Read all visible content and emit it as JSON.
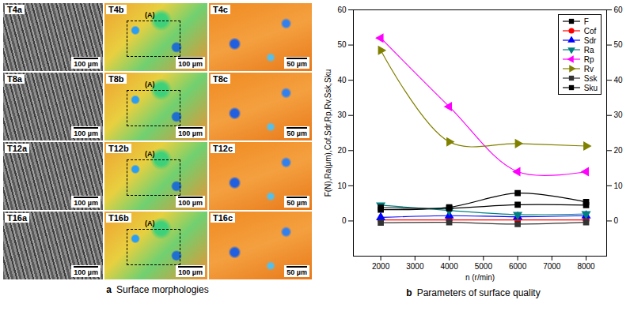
{
  "chart_data": {
    "type": "line",
    "caption": {
      "letter": "b",
      "text": "Parameters of surface quality"
    },
    "x_label": "n (r/min)",
    "y_label": "F(N),Ra(μm),Cof,Sdr,Rp,Rv,Ssk,Sku",
    "x": [
      2000,
      4000,
      6000,
      8000
    ],
    "xlim": [
      1200,
      8600
    ],
    "xticks": [
      2000,
      3000,
      4000,
      5000,
      6000,
      7000,
      8000
    ],
    "ylim": [
      -10,
      60
    ],
    "yticks": [
      0,
      10,
      20,
      30,
      40,
      50,
      60
    ],
    "legend": "top-right",
    "line_style": "smooth",
    "series": [
      {
        "name": "F",
        "color": "#000000",
        "marker": "square",
        "values": [
          3.2,
          3.9,
          7.9,
          5.4
        ]
      },
      {
        "name": "Cof",
        "color": "#ff0000",
        "marker": "circle",
        "values": [
          0.3,
          0.3,
          0.3,
          0.3
        ]
      },
      {
        "name": "Sdr",
        "color": "#0000ff",
        "marker": "triangle",
        "values": [
          1.0,
          1.5,
          1.2,
          1.5
        ]
      },
      {
        "name": "Ra",
        "color": "#008080",
        "marker": "triangle-down",
        "values": [
          4.5,
          3.0,
          1.8,
          2.0
        ]
      },
      {
        "name": "Rp",
        "color": "#ff00ff",
        "marker": "triangle-left",
        "values": [
          52,
          32.5,
          14,
          14
        ]
      },
      {
        "name": "Rv",
        "color": "#808000",
        "marker": "triangle-right",
        "values": [
          48.5,
          22.5,
          22,
          21.3
        ]
      },
      {
        "name": "Ssk",
        "color": "#333333",
        "marker": "square",
        "values": [
          -0.5,
          -0.4,
          -0.9,
          -0.4
        ]
      },
      {
        "name": "Sku",
        "color": "#000000",
        "marker": "square",
        "values": [
          3.8,
          3.6,
          4.6,
          4.5
        ]
      }
    ]
  },
  "image_panel": {
    "caption": {
      "letter": "a",
      "text": "Surface morphologies"
    },
    "callout": "(A)",
    "rows": [
      [
        {
          "label": "T4a",
          "scale_bar": "100 µm"
        },
        {
          "label": "T4b",
          "scale_bar": "100 µm"
        },
        {
          "label": "T4c",
          "scale_bar": "50 µm"
        }
      ],
      [
        {
          "label": "T8a",
          "scale_bar": "100 µm"
        },
        {
          "label": "T8b",
          "scale_bar": "100 µm"
        },
        {
          "label": "T8c",
          "scale_bar": "50 µm"
        }
      ],
      [
        {
          "label": "T12a",
          "scale_bar": "100 µm"
        },
        {
          "label": "T12b",
          "scale_bar": "100 µm"
        },
        {
          "label": "T12c",
          "scale_bar": "50 µm"
        }
      ],
      [
        {
          "label": "T16a",
          "scale_bar": "100 µm"
        },
        {
          "label": "T16b",
          "scale_bar": "100 µm"
        },
        {
          "label": "T16c",
          "scale_bar": "50 µm"
        }
      ]
    ]
  }
}
